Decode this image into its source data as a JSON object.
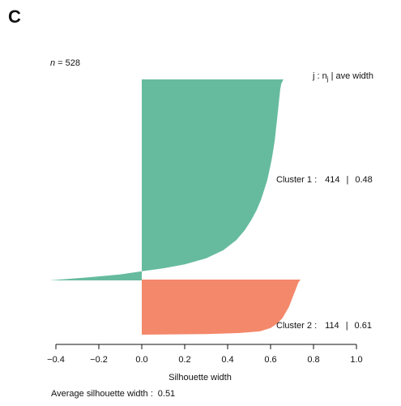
{
  "panel_label": "C",
  "n_prefix": "n",
  "n_rest": " = 528",
  "legend_header": {
    "prefix": "j :  n",
    "subscript": "j",
    "suffix": " | ave width"
  },
  "colors": {
    "cluster1": "#66bb9f",
    "cluster2": "#f4886a",
    "axis": "#111111"
  },
  "chart_data": {
    "type": "bar",
    "orientation": "horizontal",
    "xlabel": "Silhouette width",
    "xlim": [
      -0.4,
      1.0
    ],
    "xticks": [
      -0.4,
      -0.2,
      0.0,
      0.2,
      0.4,
      0.6,
      0.8,
      1.0
    ],
    "xtick_labels": [
      "−0.4",
      "−0.2",
      "0.0",
      "0.2",
      "0.4",
      "0.6",
      "0.8",
      "1.0"
    ],
    "n": 528,
    "series": [
      {
        "name": "Cluster 1",
        "label_prefix": "Cluster 1 :",
        "size": 414,
        "ave_width": 0.48,
        "size_label": "414",
        "ave_label": "0.48",
        "profile": [
          [
            0.0,
            0.66
          ],
          [
            0.02,
            0.65
          ],
          [
            0.05,
            0.645
          ],
          [
            0.1,
            0.64
          ],
          [
            0.15,
            0.635
          ],
          [
            0.2,
            0.63
          ],
          [
            0.25,
            0.625
          ],
          [
            0.3,
            0.62
          ],
          [
            0.35,
            0.613
          ],
          [
            0.4,
            0.605
          ],
          [
            0.45,
            0.595
          ],
          [
            0.5,
            0.585
          ],
          [
            0.55,
            0.57
          ],
          [
            0.6,
            0.555
          ],
          [
            0.65,
            0.535
          ],
          [
            0.7,
            0.51
          ],
          [
            0.75,
            0.48
          ],
          [
            0.8,
            0.44
          ],
          [
            0.85,
            0.38
          ],
          [
            0.89,
            0.3
          ],
          [
            0.92,
            0.2
          ],
          [
            0.94,
            0.1
          ],
          [
            0.955,
            0.0
          ],
          [
            0.97,
            -0.1
          ],
          [
            0.985,
            -0.25
          ],
          [
            1.0,
            -0.43
          ]
        ]
      },
      {
        "name": "Cluster 2",
        "label_prefix": "Cluster 2 :",
        "size": 114,
        "ave_width": 0.61,
        "size_label": "114",
        "ave_label": "0.61",
        "profile": [
          [
            0.0,
            0.74
          ],
          [
            0.05,
            0.73
          ],
          [
            0.1,
            0.725
          ],
          [
            0.2,
            0.715
          ],
          [
            0.3,
            0.705
          ],
          [
            0.4,
            0.695
          ],
          [
            0.5,
            0.685
          ],
          [
            0.6,
            0.67
          ],
          [
            0.7,
            0.655
          ],
          [
            0.8,
            0.63
          ],
          [
            0.88,
            0.6
          ],
          [
            0.94,
            0.55
          ],
          [
            0.97,
            0.45
          ],
          [
            0.99,
            0.3
          ],
          [
            1.0,
            0.0
          ]
        ]
      }
    ],
    "footer_label": "Average silhouette width :",
    "footer_value": "0.51"
  }
}
